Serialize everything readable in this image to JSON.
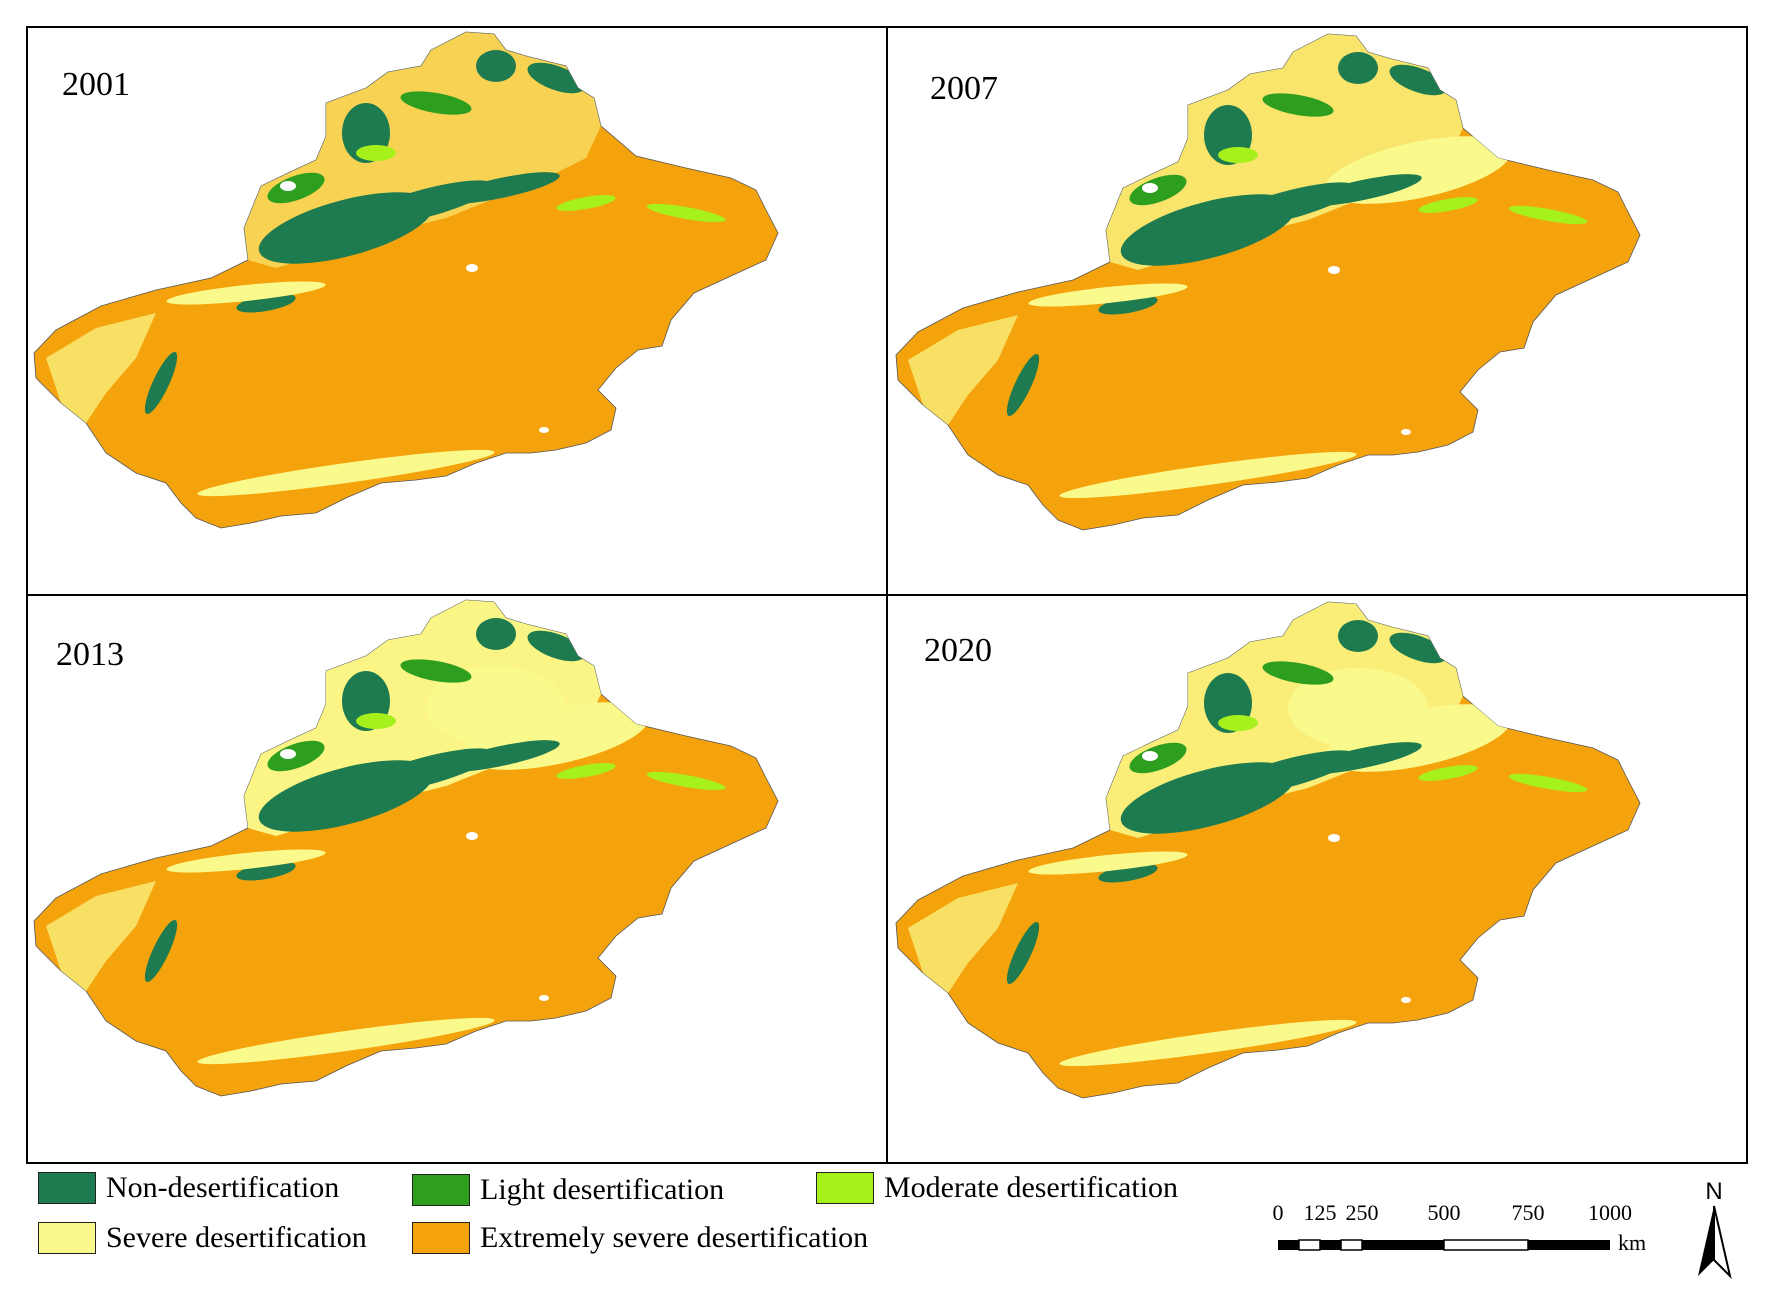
{
  "colors": {
    "non": "#1e7a4f",
    "light": "#2e9e1f",
    "moderate": "#a6f01c",
    "severe": "#fafa8c",
    "extreme": "#f5a30c"
  },
  "panels": [
    {
      "year": "2001"
    },
    {
      "year": "2007"
    },
    {
      "year": "2013"
    },
    {
      "year": "2020"
    }
  ],
  "legend": [
    {
      "label": "Non-desertification",
      "color_key": "non"
    },
    {
      "label": "Light desertification",
      "color_key": "light"
    },
    {
      "label": "Moderate desertification",
      "color_key": "moderate"
    },
    {
      "label": "Severe desertification",
      "color_key": "severe"
    },
    {
      "label": "Extremely severe desertification",
      "color_key": "extreme"
    }
  ],
  "scalebar": {
    "ticks": [
      "0",
      "125",
      "250",
      "500",
      "750",
      "1000"
    ],
    "unit": "km"
  },
  "north_arrow": {
    "label": "N",
    "icon": "north-arrow-icon"
  }
}
